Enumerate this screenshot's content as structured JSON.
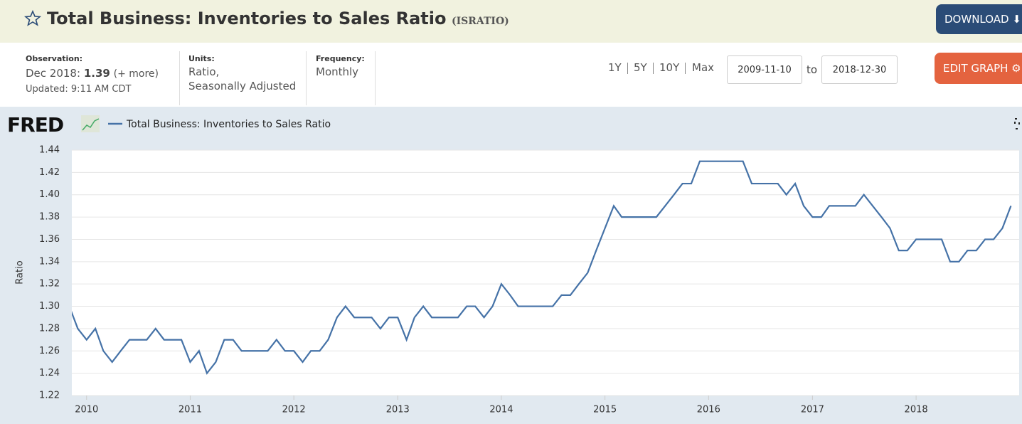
{
  "header": {
    "title": "Total Business: Inventories to Sales Ratio",
    "series_id": "(ISRATIO)",
    "download": "DOWNLOAD"
  },
  "info": {
    "observation_label": "Observation:",
    "observation_date": "Dec 2018:",
    "observation_value": 1.39,
    "more": "(+ more)",
    "updated": "Updated: 9:11 AM CDT",
    "units_label": "Units:",
    "units_line1": "Ratio,",
    "units_line2": "Seasonally Adjusted",
    "frequency_label": "Frequency:",
    "frequency": "Monthly"
  },
  "controls": {
    "ranges": [
      "1Y",
      "5Y",
      "10Y",
      "Max"
    ],
    "start_date": "2009-11-10",
    "to": "to",
    "end_date": "2018-12-30",
    "edit": "EDIT GRAPH"
  },
  "logo": "FRED",
  "chart_data": {
    "type": "line",
    "ylabel": "Ratio",
    "x": [
      "2009-11",
      "2009-12",
      "2010-01",
      "2010-02",
      "2010-03",
      "2010-04",
      "2010-05",
      "2010-06",
      "2010-07",
      "2010-08",
      "2010-09",
      "2010-10",
      "2010-11",
      "2010-12",
      "2011-01",
      "2011-02",
      "2011-03",
      "2011-04",
      "2011-05",
      "2011-06",
      "2011-07",
      "2011-08",
      "2011-09",
      "2011-10",
      "2011-11",
      "2011-12",
      "2012-01",
      "2012-02",
      "2012-03",
      "2012-04",
      "2012-05",
      "2012-06",
      "2012-07",
      "2012-08",
      "2012-09",
      "2012-10",
      "2012-11",
      "2012-12",
      "2013-01",
      "2013-02",
      "2013-03",
      "2013-04",
      "2013-05",
      "2013-06",
      "2013-07",
      "2013-08",
      "2013-09",
      "2013-10",
      "2013-11",
      "2013-12",
      "2014-01",
      "2014-02",
      "2014-03",
      "2014-04",
      "2014-05",
      "2014-06",
      "2014-07",
      "2014-08",
      "2014-09",
      "2014-10",
      "2014-11",
      "2014-12",
      "2015-01",
      "2015-02",
      "2015-03",
      "2015-04",
      "2015-05",
      "2015-06",
      "2015-07",
      "2015-08",
      "2015-09",
      "2015-10",
      "2015-11",
      "2015-12",
      "2016-01",
      "2016-02",
      "2016-03",
      "2016-04",
      "2016-05",
      "2016-06",
      "2016-07",
      "2016-08",
      "2016-09",
      "2016-10",
      "2016-11",
      "2016-12",
      "2017-01",
      "2017-02",
      "2017-03",
      "2017-04",
      "2017-05",
      "2017-06",
      "2017-07",
      "2017-08",
      "2017-09",
      "2017-10",
      "2017-11",
      "2017-12",
      "2018-01",
      "2018-02",
      "2018-03",
      "2018-04",
      "2018-05",
      "2018-06",
      "2018-07",
      "2018-08",
      "2018-09",
      "2018-10",
      "2018-11",
      "2018-12"
    ],
    "series": [
      {
        "name": "Total Business: Inventories to Sales Ratio",
        "color": "#4572a7",
        "values": [
          1.3,
          1.28,
          1.27,
          1.28,
          1.26,
          1.25,
          1.26,
          1.27,
          1.27,
          1.27,
          1.28,
          1.27,
          1.27,
          1.27,
          1.25,
          1.26,
          1.24,
          1.25,
          1.27,
          1.27,
          1.26,
          1.26,
          1.26,
          1.26,
          1.27,
          1.26,
          1.26,
          1.25,
          1.26,
          1.26,
          1.27,
          1.29,
          1.3,
          1.29,
          1.29,
          1.29,
          1.28,
          1.29,
          1.29,
          1.27,
          1.29,
          1.3,
          1.29,
          1.29,
          1.29,
          1.29,
          1.3,
          1.3,
          1.29,
          1.3,
          1.32,
          1.31,
          1.3,
          1.3,
          1.3,
          1.3,
          1.3,
          1.31,
          1.31,
          1.32,
          1.33,
          1.35,
          1.37,
          1.39,
          1.38,
          1.38,
          1.38,
          1.38,
          1.38,
          1.39,
          1.4,
          1.41,
          1.41,
          1.43,
          1.43,
          1.43,
          1.43,
          1.43,
          1.43,
          1.41,
          1.41,
          1.41,
          1.41,
          1.4,
          1.41,
          1.39,
          1.38,
          1.38,
          1.39,
          1.39,
          1.39,
          1.39,
          1.4,
          1.39,
          1.38,
          1.37,
          1.35,
          1.35,
          1.36,
          1.36,
          1.36,
          1.36,
          1.34,
          1.34,
          1.35,
          1.35,
          1.36,
          1.36,
          1.37,
          1.39
        ]
      }
    ],
    "xlim": [
      "2009-11-10",
      "2018-12-30"
    ],
    "xticks": [
      2010,
      2011,
      2012,
      2013,
      2014,
      2015,
      2016,
      2017,
      2018
    ],
    "ylim": [
      1.22,
      1.44
    ],
    "yticks": [
      1.22,
      1.24,
      1.26,
      1.28,
      {
        "value": 1.3,
        "label": "1.30"
      },
      1.32,
      1.34,
      1.36,
      1.38,
      {
        "value": 1.4,
        "label": "1.40"
      },
      1.42,
      1.44
    ],
    "grid": true
  }
}
